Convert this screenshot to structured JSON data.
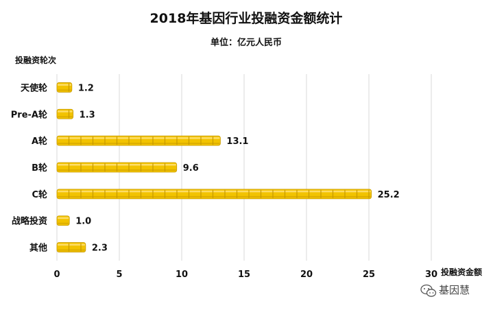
{
  "chart_data": {
    "type": "bar",
    "orientation": "horizontal",
    "title": "2018年基因行业投融资金额统计",
    "subtitle": "单位：亿元人民币",
    "ylabel": "投融资轮次",
    "xlabel": "投融资金额",
    "categories": [
      "天使轮",
      "Pre-A轮",
      "A轮",
      "B轮",
      "C轮",
      "战略投资",
      "其他"
    ],
    "values": [
      1.2,
      1.3,
      13.1,
      9.6,
      25.2,
      1.0,
      2.3
    ],
    "value_labels": [
      "1.2",
      "1.3",
      "13.1",
      "9.6",
      "25.2",
      "1.0",
      "2.3"
    ],
    "xlim": [
      0,
      30
    ],
    "xticks": [
      "0",
      "5",
      "10",
      "15",
      "20",
      "25",
      "30"
    ],
    "grid": "vertical",
    "bar_style": "gold coin stacks",
    "bar_color": "#F2C300",
    "bar_highlight": "#FFE27A",
    "bar_edge": "#C79A00"
  },
  "watermark": {
    "text": "基因慧",
    "icon": "wechat-icon"
  }
}
